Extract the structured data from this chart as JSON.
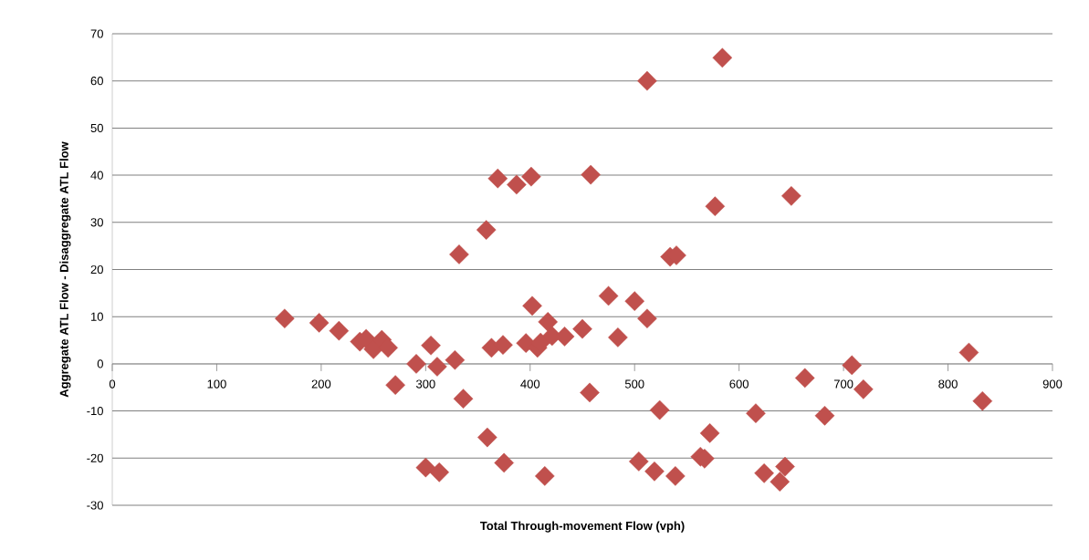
{
  "chart_data": {
    "type": "scatter",
    "xlabel": "Total Through-movement Flow (vph)",
    "ylabel": "Aggregate ATL Flow - Disaggregate ATL Flow",
    "x": [
      165,
      198,
      217,
      237,
      243,
      250,
      258,
      264,
      271,
      291,
      300,
      305,
      311,
      313,
      328,
      332,
      336,
      358,
      359,
      363,
      369,
      374,
      375,
      387,
      396,
      401,
      402,
      407,
      410,
      414,
      417,
      421,
      433,
      450,
      457,
      458,
      475,
      484,
      500,
      504,
      512,
      512,
      519,
      524,
      534,
      539,
      540,
      563,
      567,
      572,
      577,
      584,
      616,
      624,
      639,
      644,
      650,
      663,
      682,
      708,
      719,
      820,
      833
    ],
    "values": [
      9.6,
      8.7,
      7,
      4.7,
      5.3,
      3.1,
      5.1,
      3.4,
      -4.5,
      0,
      -22,
      3.9,
      -0.6,
      -23,
      0.8,
      23.2,
      -7.4,
      28.4,
      -15.6,
      3.4,
      39.3,
      4,
      -21,
      38,
      4.4,
      39.7,
      12.3,
      3.4,
      4.5,
      -23.8,
      8.9,
      5.9,
      5.8,
      7.4,
      -6.1,
      40.1,
      14.4,
      5.6,
      13.3,
      -20.7,
      60,
      9.6,
      -22.8,
      -9.8,
      22.7,
      -23.8,
      23,
      -19.7,
      -20.1,
      -14.7,
      33.4,
      64.9,
      -10.5,
      -23.2,
      -25,
      -21.8,
      35.6,
      -3,
      -11,
      -0.3,
      -5.4,
      2.4,
      -7.9
    ],
    "color": "#c0504d",
    "marker": "diamond",
    "grid": "y",
    "xlim": [
      0,
      900
    ],
    "ylim": [
      -30,
      70
    ],
    "xticks": [
      0,
      100,
      200,
      300,
      400,
      500,
      600,
      700,
      800,
      900
    ],
    "yticks": [
      -30,
      -20,
      -10,
      0,
      10,
      20,
      30,
      40,
      50,
      60,
      70
    ]
  }
}
